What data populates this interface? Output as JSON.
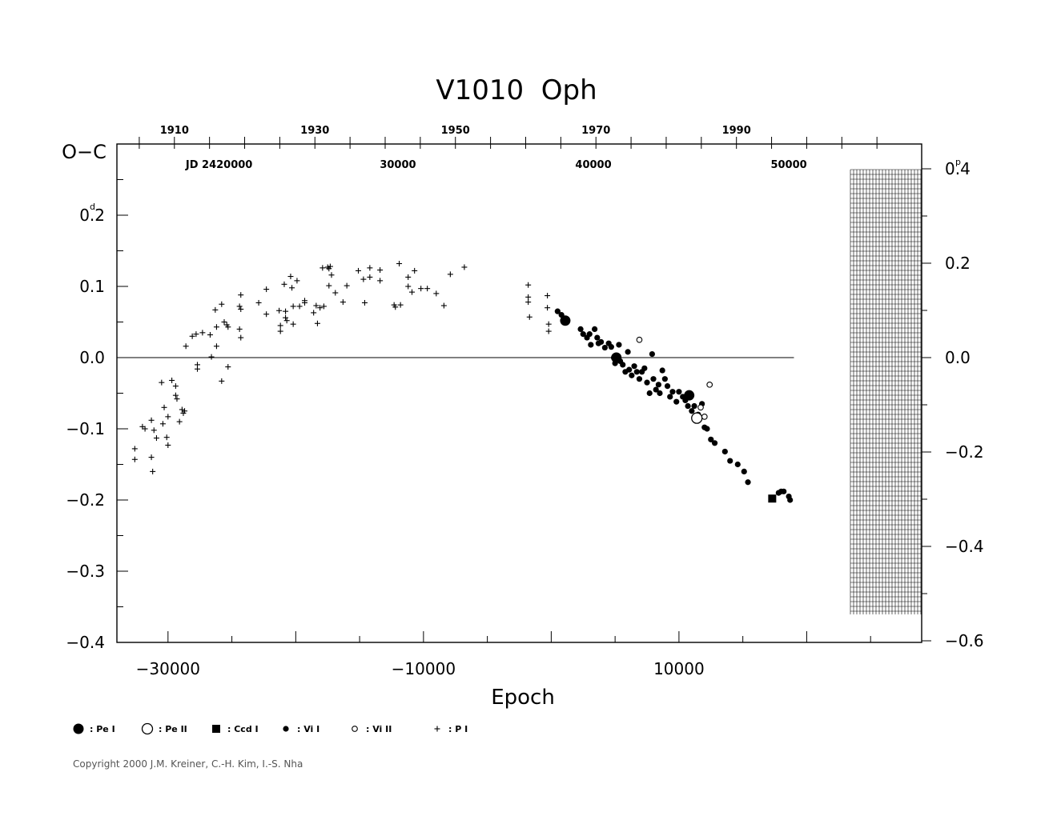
{
  "chart_data": {
    "type": "scatter",
    "title": "V1010  Oph",
    "xlabel": "Epoch",
    "ylabel": "O−C",
    "y_unit_symbol": "d",
    "right_unit_symbol": "p",
    "xlim": [
      -34000,
      29000
    ],
    "ylim": [
      -0.4,
      0.3
    ],
    "x_ticks": [
      -30000,
      -10000,
      10000
    ],
    "x_tick_labels": [
      "−30000",
      "−10000",
      "10000"
    ],
    "y_ticks": [
      -0.4,
      -0.3,
      -0.2,
      -0.1,
      0.0,
      0.1,
      0.2
    ],
    "y_tick_labels": [
      "−0.4",
      "−0.3",
      "−0.2",
      "−0.1",
      "0.0",
      "0.1",
      "0.2"
    ],
    "right_ticks": [
      -0.6,
      -0.4,
      -0.2,
      0.0,
      0.2,
      0.4
    ],
    "right_tick_labels": [
      "−0.6",
      "−0.4",
      "−0.2",
      "0.0",
      "0.2",
      "0.4"
    ],
    "top_years": [
      {
        "epoch": -29500,
        "label": "1910"
      },
      {
        "epoch": -18500,
        "label": "1930"
      },
      {
        "epoch": -7500,
        "label": "1950"
      },
      {
        "epoch": 3500,
        "label": "1970"
      },
      {
        "epoch": 14500,
        "label": "1990"
      }
    ],
    "top_jd": [
      {
        "epoch": -26000,
        "label": "JD  2420000"
      },
      {
        "epoch": -12000,
        "label": "30000"
      },
      {
        "epoch": 3300,
        "label": "40000"
      },
      {
        "epoch": 18600,
        "label": "50000"
      }
    ],
    "legend": [
      {
        "marker": "big-filled-circle",
        "label": ":  Pe  I"
      },
      {
        "marker": "big-open-circle",
        "label": ":  Pe  II"
      },
      {
        "marker": "filled-square",
        "label": ":  Ccd  I"
      },
      {
        "marker": "small-filled-circle",
        "label": ":  Vi  I"
      },
      {
        "marker": "small-open-circle",
        "label": ":  Vi  II"
      },
      {
        "marker": "plus",
        "label": ":  P  I"
      }
    ],
    "series": [
      {
        "name": "P I",
        "marker": "plus",
        "points": [
          [
            -32600,
            -0.128
          ],
          [
            -32600,
            -0.143
          ],
          [
            -32000,
            -0.097
          ],
          [
            -31800,
            -0.1
          ],
          [
            -31300,
            -0.088
          ],
          [
            -31300,
            -0.14
          ],
          [
            -31200,
            -0.16
          ],
          [
            -31100,
            -0.102
          ],
          [
            -30900,
            -0.113
          ],
          [
            -30500,
            -0.035
          ],
          [
            -30400,
            -0.093
          ],
          [
            -30300,
            -0.07
          ],
          [
            -30100,
            -0.112
          ],
          [
            -30000,
            -0.123
          ],
          [
            -30000,
            -0.083
          ],
          [
            -29700,
            -0.032
          ],
          [
            -29400,
            -0.04
          ],
          [
            -29400,
            -0.053
          ],
          [
            -29300,
            -0.058
          ],
          [
            -29100,
            -0.09
          ],
          [
            -28900,
            -0.073
          ],
          [
            -28800,
            -0.078
          ],
          [
            -28700,
            -0.075
          ],
          [
            -28600,
            0.016
          ],
          [
            -28100,
            0.03
          ],
          [
            -27800,
            0.033
          ],
          [
            -27700,
            -0.01
          ],
          [
            -27700,
            -0.016
          ],
          [
            -27300,
            0.035
          ],
          [
            -26700,
            0.032
          ],
          [
            -26600,
            0.001
          ],
          [
            -26300,
            0.067
          ],
          [
            -26200,
            0.043
          ],
          [
            -26200,
            0.016
          ],
          [
            -25800,
            0.075
          ],
          [
            -25800,
            -0.033
          ],
          [
            -25600,
            0.05
          ],
          [
            -25400,
            0.046
          ],
          [
            -25300,
            0.043
          ],
          [
            -25300,
            -0.013
          ],
          [
            -24400,
            0.072
          ],
          [
            -24400,
            0.04
          ],
          [
            -24300,
            0.088
          ],
          [
            -24300,
            0.068
          ],
          [
            -24300,
            0.028
          ],
          [
            -22900,
            0.077
          ],
          [
            -22300,
            0.096
          ],
          [
            -22300,
            0.061
          ],
          [
            -21300,
            0.066
          ],
          [
            -21200,
            0.045
          ],
          [
            -21200,
            0.037
          ],
          [
            -20900,
            0.103
          ],
          [
            -20800,
            0.065
          ],
          [
            -20800,
            0.056
          ],
          [
            -20700,
            0.052
          ],
          [
            -20400,
            0.114
          ],
          [
            -20300,
            0.098
          ],
          [
            -20200,
            0.072
          ],
          [
            -20200,
            0.047
          ],
          [
            -19900,
            0.108
          ],
          [
            -19700,
            0.072
          ],
          [
            -19300,
            0.08
          ],
          [
            -19300,
            0.077
          ],
          [
            -18600,
            0.063
          ],
          [
            -18400,
            0.073
          ],
          [
            -18300,
            0.048
          ],
          [
            -18100,
            0.07
          ],
          [
            -17900,
            0.126
          ],
          [
            -17800,
            0.072
          ],
          [
            -17500,
            0.127
          ],
          [
            -17400,
            0.101
          ],
          [
            -17400,
            0.125
          ],
          [
            -17300,
            0.128
          ],
          [
            -17200,
            0.116
          ],
          [
            -16900,
            0.091
          ],
          [
            -16300,
            0.078
          ],
          [
            -16000,
            0.101
          ],
          [
            -15100,
            0.122
          ],
          [
            -14700,
            0.11
          ],
          [
            -14600,
            0.077
          ],
          [
            -14200,
            0.113
          ],
          [
            -14200,
            0.126
          ],
          [
            -13400,
            0.123
          ],
          [
            -13400,
            0.108
          ],
          [
            -12300,
            0.074
          ],
          [
            -12200,
            0.071
          ],
          [
            -11900,
            0.132
          ],
          [
            -11800,
            0.074
          ],
          [
            -11200,
            0.113
          ],
          [
            -11200,
            0.1
          ],
          [
            -10900,
            0.092
          ],
          [
            -10700,
            0.122
          ],
          [
            -10200,
            0.097
          ],
          [
            -9700,
            0.097
          ],
          [
            -9000,
            0.09
          ],
          [
            -8400,
            0.073
          ],
          [
            -7900,
            0.117
          ],
          [
            -6800,
            0.127
          ],
          [
            -1800,
            0.102
          ],
          [
            -1800,
            0.085
          ],
          [
            -1800,
            0.078
          ],
          [
            -1700,
            0.057
          ],
          [
            -300,
            0.087
          ],
          [
            -300,
            0.07
          ],
          [
            -200,
            0.047
          ],
          [
            -200,
            0.037
          ]
        ]
      },
      {
        "name": "Vi I",
        "marker": "small-filled-circle",
        "points": [
          [
            500,
            0.065
          ],
          [
            800,
            0.06
          ],
          [
            1000,
            0.053
          ],
          [
            1100,
            0.055
          ],
          [
            2300,
            0.04
          ],
          [
            2500,
            0.033
          ],
          [
            2800,
            0.028
          ],
          [
            3000,
            0.033
          ],
          [
            3100,
            0.018
          ],
          [
            3400,
            0.04
          ],
          [
            3600,
            0.028
          ],
          [
            3700,
            0.02
          ],
          [
            3900,
            0.022
          ],
          [
            4200,
            0.014
          ],
          [
            4500,
            0.02
          ],
          [
            4700,
            0.015
          ],
          [
            4900,
            0.0
          ],
          [
            5000,
            -0.008
          ],
          [
            5300,
            0.018
          ],
          [
            5400,
            -0.005
          ],
          [
            5600,
            -0.01
          ],
          [
            5800,
            -0.02
          ],
          [
            6000,
            0.008
          ],
          [
            6100,
            -0.017
          ],
          [
            6300,
            -0.025
          ],
          [
            6500,
            -0.012
          ],
          [
            6700,
            -0.02
          ],
          [
            6900,
            -0.03
          ],
          [
            7100,
            -0.02
          ],
          [
            7300,
            -0.015
          ],
          [
            7500,
            -0.035
          ],
          [
            7700,
            -0.05
          ],
          [
            7900,
            0.005
          ],
          [
            8000,
            -0.03
          ],
          [
            8200,
            -0.045
          ],
          [
            8400,
            -0.038
          ],
          [
            8500,
            -0.05
          ],
          [
            8700,
            -0.018
          ],
          [
            8900,
            -0.03
          ],
          [
            9100,
            -0.04
          ],
          [
            9300,
            -0.055
          ],
          [
            9500,
            -0.048
          ],
          [
            9800,
            -0.062
          ],
          [
            10000,
            -0.048
          ],
          [
            10300,
            -0.055
          ],
          [
            10500,
            -0.06
          ],
          [
            10700,
            -0.068
          ],
          [
            11000,
            -0.075
          ],
          [
            11200,
            -0.068
          ],
          [
            11500,
            -0.08
          ],
          [
            11800,
            -0.065
          ],
          [
            12000,
            -0.098
          ],
          [
            12200,
            -0.1
          ],
          [
            12500,
            -0.115
          ],
          [
            12800,
            -0.12
          ],
          [
            13600,
            -0.132
          ],
          [
            14000,
            -0.145
          ],
          [
            14600,
            -0.15
          ],
          [
            15100,
            -0.16
          ],
          [
            15400,
            -0.175
          ],
          [
            17800,
            -0.19
          ],
          [
            18000,
            -0.188
          ],
          [
            18200,
            -0.188
          ],
          [
            18600,
            -0.195
          ],
          [
            18700,
            -0.2
          ]
        ]
      },
      {
        "name": "Pe I",
        "marker": "big-filled-circle",
        "points": [
          [
            1100,
            0.052
          ],
          [
            5100,
            0.0
          ],
          [
            10800,
            -0.053
          ]
        ]
      },
      {
        "name": "Pe II",
        "marker": "big-open-circle",
        "points": [
          [
            11400,
            -0.085
          ]
        ]
      },
      {
        "name": "Vi II",
        "marker": "small-open-circle",
        "points": [
          [
            6900,
            0.025
          ],
          [
            11700,
            -0.07
          ],
          [
            12000,
            -0.083
          ],
          [
            12400,
            -0.038
          ]
        ]
      },
      {
        "name": "Ccd I",
        "marker": "filled-square",
        "points": [
          [
            17300,
            -0.198
          ]
        ]
      }
    ]
  },
  "credit": "Copyright 2000 J.M. Kreiner, C.-H. Kim, I.-S. Nha"
}
